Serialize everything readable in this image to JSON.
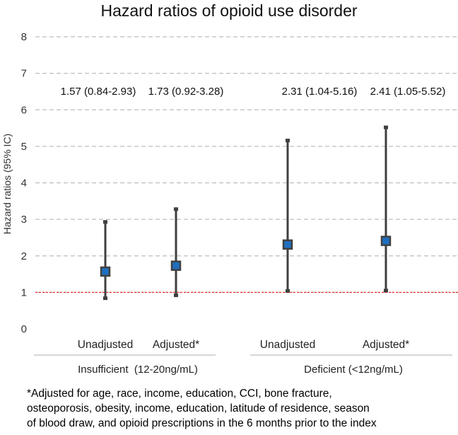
{
  "chart_data": {
    "type": "errorbar",
    "title": "Hazard ratios of opioid use disorder",
    "xlabel": "",
    "ylabel": "Hazard ratios (95% IC)",
    "ylim": [
      0,
      8
    ],
    "yticks": [
      0,
      1,
      2,
      3,
      4,
      5,
      6,
      7,
      8
    ],
    "grid": true,
    "reference_line": 1,
    "groups": [
      {
        "label": "Insufficient  (12-20ng/mL)",
        "points": [
          {
            "category": "Unadjusted",
            "estimate": 1.57,
            "lower": 0.84,
            "upper": 2.93,
            "annotation": "1.57 (0.84-2.93)"
          },
          {
            "category": "Adjusted*",
            "estimate": 1.73,
            "lower": 0.92,
            "upper": 3.28,
            "annotation": "1.73 (0.92-3.28)"
          }
        ]
      },
      {
        "label": "Deficient (<12ng/mL)",
        "points": [
          {
            "category": "Unadjusted",
            "estimate": 2.31,
            "lower": 1.04,
            "upper": 5.16,
            "annotation": "2.31 (1.04-5.16)"
          },
          {
            "category": "Adjusted*",
            "estimate": 2.41,
            "lower": 1.05,
            "upper": 5.52,
            "annotation": "2.41 (1.05-5.52)"
          }
        ]
      }
    ],
    "colors": {
      "bar": "#3f3f3f",
      "marker_fill": "#1f6fbf",
      "marker_edge": "#404040",
      "reference": "#e0302c",
      "grid": "#bdbdbd"
    }
  },
  "footnote": "*Adjusted for age, race, income, education, CCI, bone fracture,\nosteoporosis, obesity, income, education, latitude of residence, season\nof blood draw, and opioid prescriptions in the 6 months prior to the index"
}
